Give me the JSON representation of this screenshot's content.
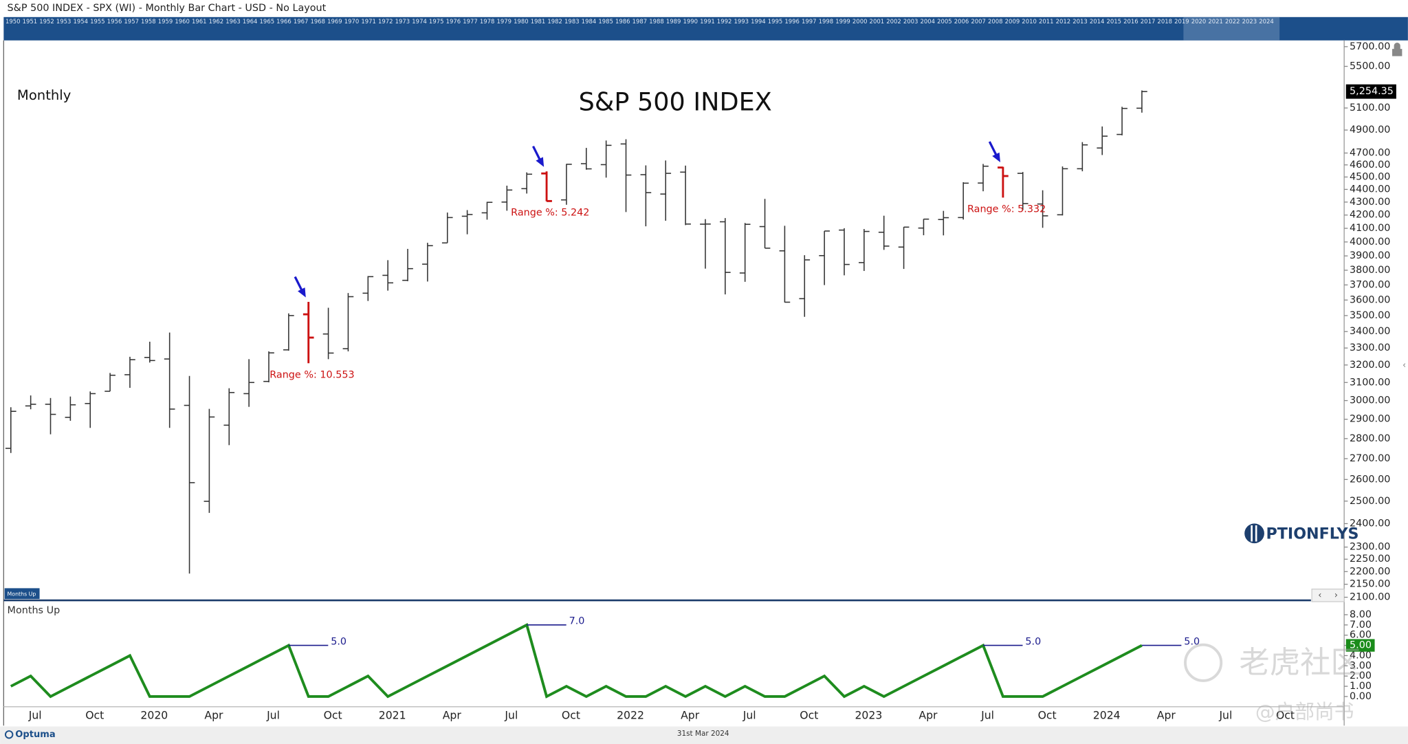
{
  "header": {
    "title": "S&P 500 INDEX - SPX (WI) - Monthly Bar Chart - USD - No Layout"
  },
  "timeline": {
    "years": [
      1950,
      1951,
      1952,
      1953,
      1954,
      1955,
      1956,
      1957,
      1958,
      1959,
      1960,
      1961,
      1962,
      1963,
      1964,
      1965,
      1966,
      1967,
      1968,
      1969,
      1970,
      1971,
      1972,
      1973,
      1974,
      1975,
      1976,
      1977,
      1978,
      1979,
      1980,
      1981,
      1982,
      1983,
      1984,
      1985,
      1986,
      1987,
      1988,
      1989,
      1990,
      1991,
      1992,
      1993,
      1994,
      1995,
      1996,
      1997,
      1998,
      1999,
      2000,
      2001,
      2002,
      2003,
      2004,
      2005,
      2006,
      2007,
      2008,
      2009,
      2010,
      2011,
      2012,
      2013,
      2014,
      2015,
      2016,
      2017,
      2018,
      2019,
      2020,
      2021,
      2022,
      2023,
      2024
    ]
  },
  "logo": "PTIONFLYS",
  "footer": {
    "brand": "Optuma",
    "date": "31st Mar 2024"
  },
  "watermark": [
    "老虎社区",
    "@户部尚书"
  ],
  "chart_data": [
    {
      "type": "ohlc",
      "title": "S&P 500 INDEX",
      "period_label": "Monthly",
      "log": true,
      "color": "#333333",
      "highlight_color": "#cc1111",
      "arrow_color": "#1a1acc",
      "ylim": [
        2090,
        5765
      ],
      "yticks": [
        {
          "value": 2100,
          "label": "2100.00"
        },
        {
          "value": 2150,
          "label": "2150.00"
        },
        {
          "value": 2200,
          "label": "2200.00"
        },
        {
          "value": 2250,
          "label": "2250.00"
        },
        {
          "value": 2300,
          "label": "2300.00"
        },
        {
          "value": 2400,
          "label": "2400.00"
        },
        {
          "value": 2500,
          "label": "2500.00"
        },
        {
          "value": 2600,
          "label": "2600.00"
        },
        {
          "value": 2700,
          "label": "2700.00"
        },
        {
          "value": 2800,
          "label": "2800.00"
        },
        {
          "value": 2900,
          "label": "2900.00"
        },
        {
          "value": 3000,
          "label": "3000.00"
        },
        {
          "value": 3100,
          "label": "3100.00"
        },
        {
          "value": 3200,
          "label": "3200.00"
        },
        {
          "value": 3300,
          "label": "3300.00"
        },
        {
          "value": 3400,
          "label": "3400.00"
        },
        {
          "value": 3500,
          "label": "3500.00"
        },
        {
          "value": 3600,
          "label": "3600.00"
        },
        {
          "value": 3700,
          "label": "3700.00"
        },
        {
          "value": 3800,
          "label": "3800.00"
        },
        {
          "value": 3900,
          "label": "3900.00"
        },
        {
          "value": 4000,
          "label": "4000.00"
        },
        {
          "value": 4100,
          "label": "4100.00"
        },
        {
          "value": 4200,
          "label": "4200.00"
        },
        {
          "value": 4300,
          "label": "4300.00"
        },
        {
          "value": 4400,
          "label": "4400.00"
        },
        {
          "value": 4500,
          "label": "4500.00"
        },
        {
          "value": 4600,
          "label": "4600.00"
        },
        {
          "value": 4700,
          "label": "4700.00"
        },
        {
          "value": 4900,
          "label": "4900.00"
        },
        {
          "value": 5100,
          "label": "5100.00"
        },
        {
          "value": 5500,
          "label": "5500.00"
        },
        {
          "value": 5700,
          "label": "5700.00"
        }
      ],
      "last_label": "5,254.35",
      "open": [
        2751,
        2971,
        2980,
        2910,
        2984,
        3051,
        3144,
        3244,
        3235,
        2974,
        2499,
        2869,
        3038,
        3106,
        3289,
        3508,
        3385,
        3296,
        3645,
        3765,
        3731,
        3842,
        3993,
        4191,
        4217,
        4300,
        4406,
        4529,
        4317,
        4610,
        4602,
        4778,
        4519,
        4363,
        4540,
        4131,
        4149,
        3781,
        4113,
        3936,
        3609,
        3902,
        4087,
        3853,
        4071,
        3963,
        4102,
        4166,
        4181,
        4451,
        4578,
        4530,
        4285,
        4202,
        4568,
        4743,
        4861,
        5098,
        null,
        null,
        null,
        null,
        null,
        null,
        null
      ],
      "high": [
        2964,
        3028,
        3014,
        3022,
        3050,
        3154,
        3248,
        3338,
        3394,
        3137,
        2955,
        3068,
        3234,
        3280,
        3514,
        3588,
        3550,
        3646,
        3760,
        3870,
        3950,
        3994,
        4219,
        4238,
        4302,
        4430,
        4538,
        4546,
        4608,
        4744,
        4808,
        4819,
        4596,
        4637,
        4594,
        4169,
        4177,
        4140,
        4325,
        4119,
        3905,
        4080,
        4101,
        4095,
        4195,
        4110,
        4170,
        4232,
        4458,
        4608,
        4584,
        4541,
        4393,
        4587,
        4794,
        4932,
        5111,
        5265,
        null,
        null,
        null,
        null,
        null,
        null,
        null
      ],
      "low": [
        2728,
        2953,
        2822,
        2892,
        2855,
        3051,
        3070,
        3214,
        2855,
        2192,
        2447,
        2767,
        2966,
        3101,
        3284,
        3210,
        3234,
        3280,
        3594,
        3662,
        3725,
        3723,
        3993,
        4056,
        4165,
        4233,
        4367,
        4306,
        4279,
        4560,
        4495,
        4223,
        4115,
        4157,
        4124,
        3811,
        3637,
        3721,
        3955,
        3584,
        3492,
        3699,
        3765,
        3795,
        3943,
        3809,
        4049,
        4048,
        4166,
        4385,
        4335,
        4238,
        4104,
        4197,
        4547,
        4683,
        4853,
        5057,
        null,
        null,
        null,
        null,
        null,
        null,
        null
      ],
      "close": [
        2942,
        2980,
        2926,
        2977,
        3038,
        3141,
        3231,
        3226,
        2954,
        2585,
        2912,
        3044,
        3100,
        3271,
        3500,
        3363,
        3270,
        3622,
        3756,
        3714,
        3811,
        3973,
        4181,
        4204,
        4298,
        4395,
        4523,
        4308,
        4605,
        4567,
        4766,
        4516,
        4374,
        4530,
        4132,
        4132,
        3785,
        4130,
        3955,
        3586,
        3872,
        4080,
        3840,
        4077,
        3970,
        4109,
        4169,
        4180,
        4450,
        4589,
        4508,
        4288,
        4194,
        4568,
        4770,
        4846,
        5096,
        5254.35,
        null,
        null,
        null,
        null,
        null,
        null,
        null
      ],
      "annotations": [
        {
          "index": 15,
          "text": "Range %: 10.553"
        },
        {
          "index": 27,
          "text": "Range %: 5.242"
        },
        {
          "index": 50,
          "text": "Range %: 5.332"
        }
      ]
    },
    {
      "type": "line",
      "title": "Months Up",
      "color": "#1e8c1e",
      "label_color": "#1a1a8c",
      "last_label": "5.00",
      "ylim": [
        -1,
        9.1
      ],
      "yticks": [
        {
          "value": 0,
          "label": "0.00"
        },
        {
          "value": 1,
          "label": "1.00"
        },
        {
          "value": 2,
          "label": "2.00"
        },
        {
          "value": 3,
          "label": "3.00"
        },
        {
          "value": 4,
          "label": "4.00"
        },
        {
          "value": 5,
          "label": "5.00"
        },
        {
          "value": 6,
          "label": "6.00"
        },
        {
          "value": 7,
          "label": "7.00"
        },
        {
          "value": 8,
          "label": "8.00"
        }
      ],
      "categories": [
        null,
        "Jul",
        null,
        null,
        "Oct",
        null,
        null,
        "2020",
        null,
        null,
        "Apr",
        null,
        null,
        "Jul",
        null,
        null,
        "Oct",
        null,
        null,
        "2021",
        null,
        null,
        "Apr",
        null,
        null,
        "Jul",
        null,
        null,
        "Oct",
        null,
        null,
        "2022",
        null,
        null,
        "Apr",
        null,
        null,
        "Jul",
        null,
        null,
        "Oct",
        null,
        null,
        "2023",
        null,
        null,
        "Apr",
        null,
        null,
        "Jul",
        null,
        null,
        "Oct",
        null,
        null,
        "2024",
        null,
        null,
        "Apr",
        null,
        null,
        "Jul",
        null,
        null,
        "Oct"
      ],
      "values": [
        1,
        2,
        0,
        1,
        2,
        3,
        4,
        0,
        0,
        0,
        1,
        2,
        3,
        4,
        5,
        0,
        0,
        1,
        2,
        0,
        1,
        2,
        3,
        4,
        5,
        6,
        7,
        0,
        1,
        0,
        1,
        0,
        0,
        1,
        0,
        1,
        0,
        1,
        0,
        0,
        1,
        2,
        0,
        1,
        0,
        1,
        2,
        3,
        4,
        5,
        0,
        0,
        0,
        1,
        2,
        3,
        4,
        5,
        null,
        null,
        null,
        null,
        null,
        null,
        null
      ],
      "value_labels": [
        null,
        null,
        null,
        null,
        null,
        null,
        null,
        null,
        null,
        null,
        null,
        null,
        null,
        null,
        "5.0",
        null,
        null,
        null,
        null,
        null,
        null,
        null,
        null,
        null,
        null,
        null,
        "7.0",
        null,
        null,
        null,
        null,
        null,
        null,
        null,
        null,
        null,
        null,
        null,
        null,
        null,
        null,
        null,
        null,
        null,
        null,
        null,
        null,
        null,
        null,
        "5.0",
        null,
        null,
        null,
        null,
        null,
        null,
        null,
        "5.0",
        null,
        null,
        null,
        null,
        null,
        null,
        null
      ]
    }
  ]
}
